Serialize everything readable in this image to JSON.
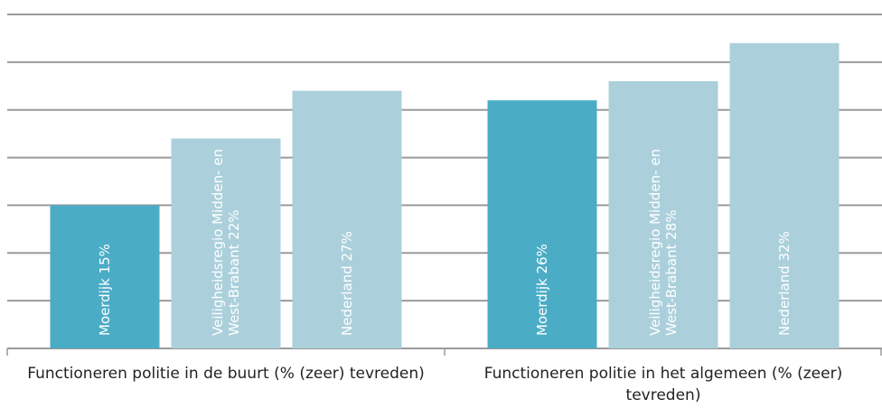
{
  "chart_data": {
    "type": "bar",
    "categories": [
      "Functioneren politie in de buurt (% (zeer) tevreden)",
      "Functioneren politie in het algemeen (% (zeer) tevreden)"
    ],
    "series": [
      {
        "name": "Moerdijk",
        "color": "#4bacc6",
        "values": [
          15,
          26
        ],
        "value_labels": [
          "15%",
          "26%"
        ]
      },
      {
        "name": "Veiligheidsregio Midden- en West-Brabant",
        "color": "#abd0dc",
        "values": [
          22,
          28
        ],
        "value_labels": [
          "22%",
          "28%"
        ]
      },
      {
        "name": "Nederland",
        "color": "#abd0dc",
        "values": [
          27,
          32
        ],
        "value_labels": [
          "27%",
          "32%"
        ]
      }
    ],
    "ylim": [
      0,
      35
    ],
    "yticks": [
      0,
      5,
      10,
      15,
      20,
      25,
      30,
      35
    ],
    "grid": true
  }
}
